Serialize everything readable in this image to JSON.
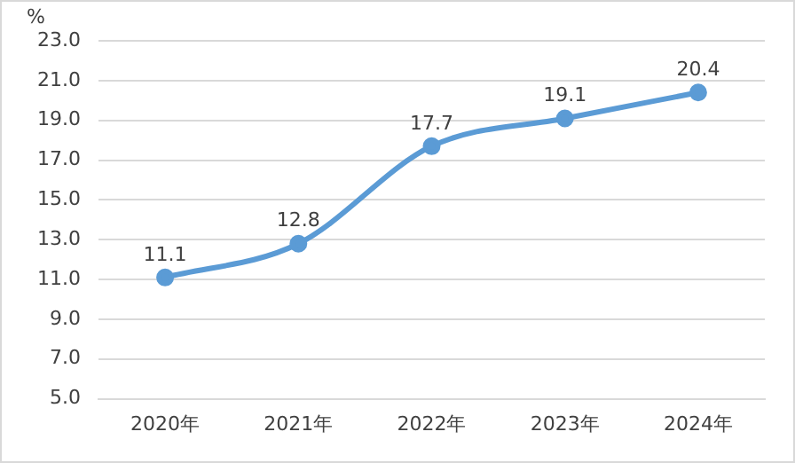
{
  "chart_data": {
    "type": "line",
    "ylabel": "%",
    "categories": [
      "2020年",
      "2021年",
      "2022年",
      "2023年",
      "2024年"
    ],
    "series": [
      {
        "color": "#5b9bd5",
        "values": [
          11.1,
          12.8,
          17.7,
          19.1,
          20.4
        ]
      }
    ],
    "ylim": [
      5,
      23
    ],
    "yticks": [
      {
        "value": 5,
        "label": "5.0"
      },
      {
        "value": 7,
        "label": "7.0"
      },
      {
        "value": 9,
        "label": "9.0"
      },
      {
        "value": 11,
        "label": "11.0"
      },
      {
        "value": 13,
        "label": "13.0"
      },
      {
        "value": 15,
        "label": "15.0"
      },
      {
        "value": 17,
        "label": "17.0"
      },
      {
        "value": 19,
        "label": "19.0"
      },
      {
        "value": 21,
        "label": "21.0"
      },
      {
        "value": 23,
        "label": "23.0"
      }
    ],
    "grid": "y",
    "legend": false,
    "marker": "circle",
    "line_style": "solid",
    "data_labels": true
  }
}
